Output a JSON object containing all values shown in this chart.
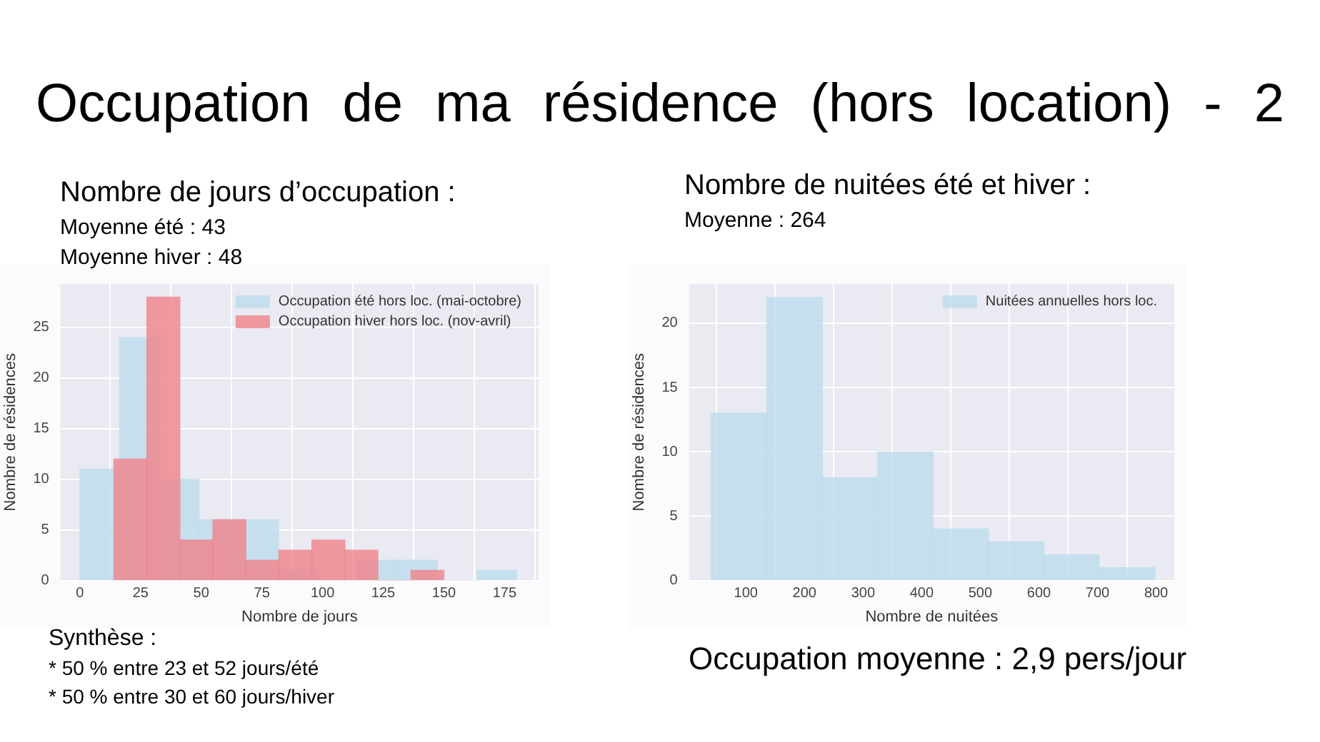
{
  "chart_data": [
    {
      "type": "histogram",
      "title": "Occupation de ma résidence (hors location) - 2",
      "subtitle": "Nombre de jours d’occupation :",
      "xlabel": "Nombre de jours",
      "ylabel": "Nombre de résidences",
      "bins": [
        0,
        16.4,
        32.7,
        49.1,
        65.5,
        81.8,
        98.2,
        114.5,
        130.9,
        147.3,
        163.6,
        180
      ],
      "series": [
        {
          "name": "Occupation été hors loc. (mai-octobre)",
          "color": "#bcdcec",
          "values": [
            11,
            24,
            10,
            6,
            6,
            1,
            0,
            2,
            2,
            0,
            1
          ]
        },
        {
          "name": "Occupation hiver hors loc. (nov-avril)",
          "color": "#f0828a",
          "bins": [
            14,
            27.6,
            41.2,
            54.8,
            68.4,
            82,
            95.6,
            109.2,
            122.8,
            136.4,
            150
          ],
          "values": [
            12,
            28,
            4,
            6,
            2,
            3,
            4,
            3,
            0,
            1
          ]
        }
      ],
      "xlim": [
        -8,
        189
      ],
      "xticks": [
        0,
        25,
        50,
        75,
        100,
        125,
        150,
        175
      ],
      "ylim": [
        0,
        29.3
      ],
      "yticks": [
        0,
        5,
        10,
        15,
        20,
        25
      ],
      "grid": true,
      "legend": "top right",
      "annotations": [
        "Moyenne été : 43",
        "Moyenne hiver : 48",
        "Synthèse :",
        "* 50 % entre 23 et 52 jours/été",
        "* 50 % entre 30 et 60 jours/hiver"
      ]
    },
    {
      "type": "histogram",
      "subtitle": "Nombre de nuitées été et hiver :",
      "xlabel": "Nombre de nuitées",
      "ylabel": "Nombre de résidences",
      "bins": [
        41,
        136,
        230,
        325,
        419,
        514,
        608,
        703,
        798
      ],
      "series": [
        {
          "name": "Nuitées annuelles hors loc.",
          "color": "#bcdcec",
          "values": [
            13,
            22,
            8,
            10,
            4,
            3,
            2,
            1
          ]
        }
      ],
      "xlim": [
        3,
        831
      ],
      "xticks": [
        100,
        200,
        300,
        400,
        500,
        600,
        700,
        800
      ],
      "ylim": [
        0,
        23.05
      ],
      "yticks": [
        0,
        5,
        10,
        15,
        20
      ],
      "grid": true,
      "legend": "top right",
      "annotations": [
        "Moyenne : 264",
        "Occupation moyenne : 2,9 pers/jour"
      ]
    }
  ]
}
